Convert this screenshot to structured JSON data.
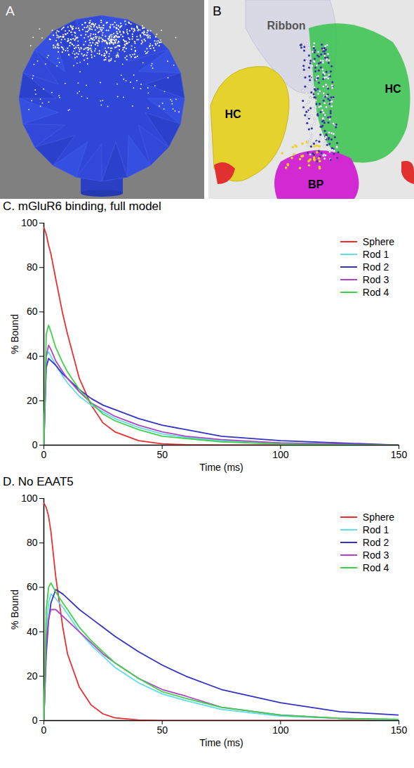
{
  "panels": [
    {
      "letter": "A"
    },
    {
      "letter": "B",
      "labels": [
        "Ribbon",
        "HC",
        "HC",
        "BP"
      ]
    }
  ],
  "chart_data": [
    {
      "type": "line",
      "title": "C. mGluR6 binding, full model",
      "x_label": "Time (ms)",
      "y_label": "% Bound",
      "x": [
        0,
        1,
        2,
        3,
        5,
        8,
        10,
        15,
        20,
        25,
        30,
        40,
        50,
        60,
        75,
        100,
        125,
        150
      ],
      "xlim": [
        0,
        150
      ],
      "xticks": [
        0,
        50,
        100,
        150
      ],
      "ylim": [
        0,
        100
      ],
      "yticks": [
        0,
        20,
        40,
        60,
        80,
        100
      ],
      "legend": "top-right",
      "series": [
        {
          "name": "Sphere",
          "color": "#e8312f",
          "values": [
            98,
            95,
            90,
            86,
            75,
            59,
            50,
            30,
            18,
            10,
            6,
            2,
            0.6,
            0.2,
            0,
            0,
            0,
            0
          ]
        },
        {
          "name": "Rod 1",
          "color": "#5fdde8",
          "values": [
            0,
            40,
            42,
            40,
            36,
            31,
            28,
            22,
            18,
            15,
            12,
            8,
            5,
            3.5,
            2,
            1,
            0.5,
            0
          ]
        },
        {
          "name": "Rod 2",
          "color": "#3434c4",
          "values": [
            0,
            35,
            39,
            38,
            36,
            32,
            30,
            25,
            21,
            18,
            16,
            12,
            9,
            7,
            4,
            2,
            1,
            0
          ]
        },
        {
          "name": "Rod 3",
          "color": "#b044c4",
          "values": [
            0,
            40,
            45,
            43,
            38,
            33,
            30,
            24,
            19,
            16,
            13,
            9,
            6,
            4,
            2.5,
            1,
            0.5,
            0
          ]
        },
        {
          "name": "Rod 4",
          "color": "#3fd14a",
          "values": [
            0,
            50,
            54,
            51,
            44,
            37,
            33,
            25,
            19,
            14,
            11,
            7,
            4,
            3,
            1.5,
            0.5,
            0.2,
            0
          ]
        }
      ]
    },
    {
      "type": "line",
      "title": "D. No EAAT5",
      "x_label": "Time (ms)",
      "y_label": "% Bound",
      "x": [
        0,
        1,
        2,
        3,
        5,
        8,
        10,
        15,
        20,
        25,
        30,
        40,
        50,
        60,
        75,
        100,
        125,
        150
      ],
      "xlim": [
        0,
        150
      ],
      "xticks": [
        0,
        50,
        100,
        150
      ],
      "ylim": [
        0,
        100
      ],
      "yticks": [
        0,
        20,
        40,
        60,
        80,
        100
      ],
      "legend": "top-right",
      "series": [
        {
          "name": "Sphere",
          "color": "#e8312f",
          "values": [
            98,
            96,
            92,
            85,
            65,
            42,
            30,
            15,
            7,
            3,
            1.2,
            0.3,
            0,
            0,
            0,
            0,
            0,
            0
          ]
        },
        {
          "name": "Rod 1",
          "color": "#5fdde8",
          "values": [
            0,
            40,
            53,
            57,
            55,
            51,
            48,
            40,
            34,
            29,
            24,
            17,
            12,
            9,
            5,
            2,
            1,
            0.3
          ]
        },
        {
          "name": "Rod 2",
          "color": "#3434c4",
          "values": [
            0,
            30,
            45,
            53,
            59,
            57,
            55,
            50,
            46,
            42,
            38,
            31,
            25,
            20,
            14,
            8,
            4,
            2.5
          ]
        },
        {
          "name": "Rod 3",
          "color": "#b044c4",
          "values": [
            0,
            35,
            46,
            50,
            50,
            47,
            45,
            40,
            35,
            30,
            26,
            19,
            14,
            11,
            6,
            2.5,
            1,
            0.5
          ]
        },
        {
          "name": "Rod 4",
          "color": "#3fd14a",
          "values": [
            0,
            50,
            60,
            62,
            58,
            53,
            50,
            42,
            36,
            31,
            26,
            19,
            13,
            10,
            6,
            2.5,
            1,
            0.5
          ]
        }
      ]
    }
  ]
}
